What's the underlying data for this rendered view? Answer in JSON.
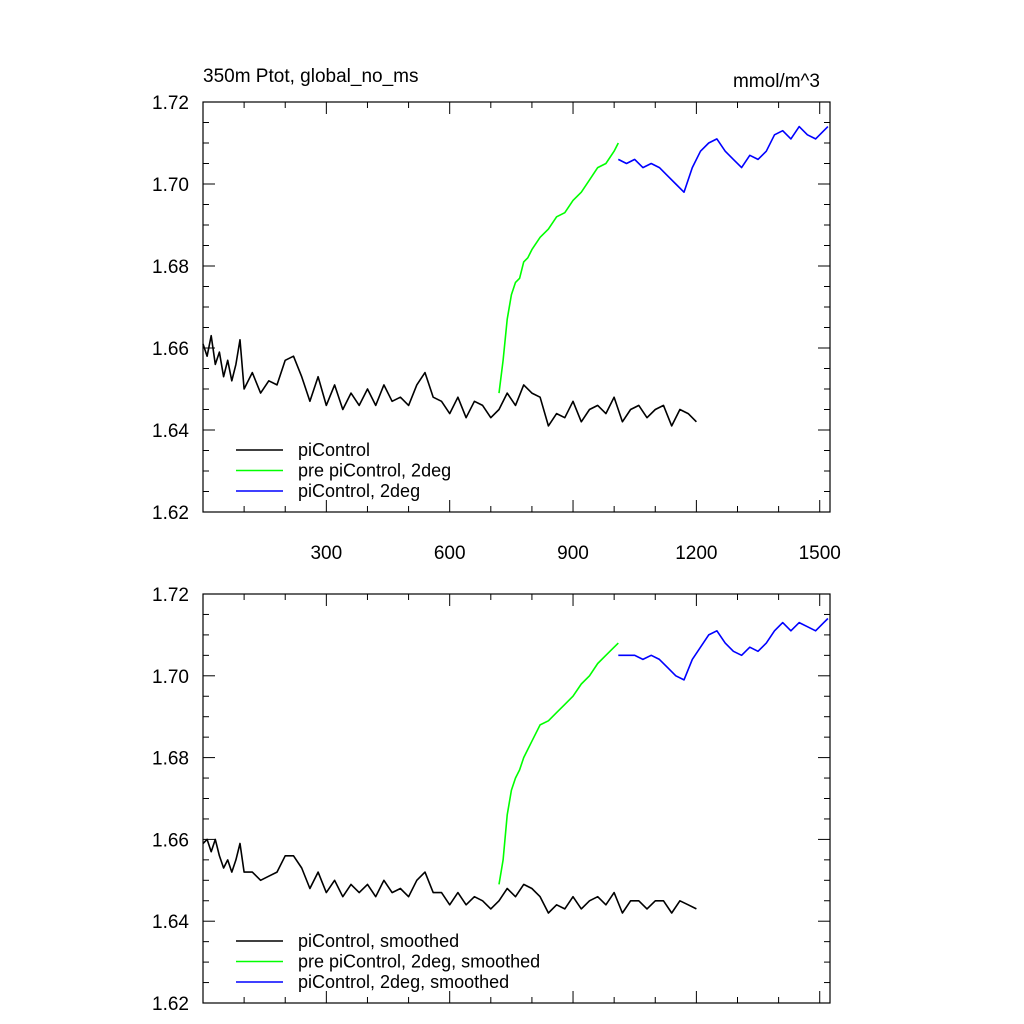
{
  "figure": {
    "title_left": "350m Ptot, global_no_ms",
    "title_right": "mmol/m^3"
  },
  "chart_data": [
    {
      "type": "line",
      "title": "350m Ptot, global_no_ms",
      "units": "mmol/m^3",
      "xlim": [
        0,
        1525
      ],
      "ylim": [
        1.62,
        1.72
      ],
      "x_ticks": [
        300,
        600,
        900,
        1200,
        1500
      ],
      "y_ticks": [
        1.62,
        1.64,
        1.66,
        1.68,
        1.7,
        1.72
      ],
      "x_tick_labels": [
        "300",
        "600",
        "900",
        "1200",
        "1500"
      ],
      "y_tick_labels": [
        "1.62",
        "1.64",
        "1.66",
        "1.68",
        "1.70",
        "1.72"
      ],
      "legend_position": "bottom-left",
      "series": [
        {
          "name": "piControl",
          "color": "#000000",
          "x": [
            0,
            10,
            20,
            30,
            40,
            50,
            60,
            70,
            80,
            90,
            100,
            120,
            140,
            160,
            180,
            200,
            220,
            240,
            260,
            280,
            300,
            320,
            340,
            360,
            380,
            400,
            420,
            440,
            460,
            480,
            500,
            520,
            540,
            560,
            580,
            600,
            620,
            640,
            660,
            680,
            700,
            720,
            740,
            760,
            780,
            800,
            820,
            840,
            860,
            880,
            900,
            920,
            940,
            960,
            980,
            1000,
            1020,
            1040,
            1060,
            1080,
            1100,
            1120,
            1140,
            1160,
            1180,
            1200
          ],
          "y": [
            1.661,
            1.658,
            1.663,
            1.656,
            1.659,
            1.653,
            1.657,
            1.652,
            1.656,
            1.662,
            1.65,
            1.654,
            1.649,
            1.652,
            1.651,
            1.657,
            1.658,
            1.653,
            1.647,
            1.653,
            1.646,
            1.651,
            1.645,
            1.649,
            1.646,
            1.65,
            1.646,
            1.651,
            1.647,
            1.648,
            1.646,
            1.651,
            1.654,
            1.648,
            1.647,
            1.644,
            1.648,
            1.643,
            1.647,
            1.646,
            1.643,
            1.645,
            1.649,
            1.646,
            1.651,
            1.649,
            1.648,
            1.641,
            1.644,
            1.643,
            1.647,
            1.642,
            1.645,
            1.646,
            1.644,
            1.648,
            1.642,
            1.645,
            1.646,
            1.643,
            1.645,
            1.646,
            1.641,
            1.645,
            1.644,
            1.642
          ]
        },
        {
          "name": "pre piControl, 2deg",
          "color": "#00ff00",
          "x": [
            720,
            730,
            740,
            750,
            760,
            770,
            780,
            790,
            800,
            820,
            840,
            860,
            880,
            900,
            920,
            940,
            960,
            980,
            1000,
            1010
          ],
          "y": [
            1.649,
            1.657,
            1.667,
            1.673,
            1.676,
            1.677,
            1.681,
            1.682,
            1.684,
            1.687,
            1.689,
            1.692,
            1.693,
            1.696,
            1.698,
            1.701,
            1.704,
            1.705,
            1.708,
            1.71
          ]
        },
        {
          "name": "piControl, 2deg",
          "color": "#0000ff",
          "x": [
            1010,
            1030,
            1050,
            1070,
            1090,
            1110,
            1130,
            1150,
            1170,
            1190,
            1210,
            1230,
            1250,
            1270,
            1290,
            1310,
            1330,
            1350,
            1370,
            1390,
            1410,
            1430,
            1450,
            1470,
            1490,
            1510,
            1520
          ],
          "y": [
            1.706,
            1.705,
            1.706,
            1.704,
            1.705,
            1.704,
            1.702,
            1.7,
            1.698,
            1.704,
            1.708,
            1.71,
            1.711,
            1.708,
            1.706,
            1.704,
            1.707,
            1.706,
            1.708,
            1.712,
            1.713,
            1.711,
            1.714,
            1.712,
            1.711,
            1.713,
            1.714
          ]
        }
      ]
    },
    {
      "type": "line",
      "xlim": [
        0,
        1525
      ],
      "ylim": [
        1.62,
        1.72
      ],
      "x_ticks": [
        300,
        600,
        900,
        1200,
        1500
      ],
      "y_ticks": [
        1.62,
        1.64,
        1.66,
        1.68,
        1.7,
        1.72
      ],
      "y_tick_labels": [
        "1.62",
        "1.64",
        "1.66",
        "1.68",
        "1.70",
        "1.72"
      ],
      "legend_position": "bottom-left",
      "series": [
        {
          "name": "piControl, smoothed",
          "color": "#000000",
          "x": [
            0,
            10,
            20,
            30,
            40,
            50,
            60,
            70,
            80,
            90,
            100,
            120,
            140,
            160,
            180,
            200,
            220,
            240,
            260,
            280,
            300,
            320,
            340,
            360,
            380,
            400,
            420,
            440,
            460,
            480,
            500,
            520,
            540,
            560,
            580,
            600,
            620,
            640,
            660,
            680,
            700,
            720,
            740,
            760,
            780,
            800,
            820,
            840,
            860,
            880,
            900,
            920,
            940,
            960,
            980,
            1000,
            1020,
            1040,
            1060,
            1080,
            1100,
            1120,
            1140,
            1160,
            1180,
            1200
          ],
          "y": [
            1.659,
            1.66,
            1.657,
            1.66,
            1.656,
            1.653,
            1.655,
            1.652,
            1.655,
            1.659,
            1.652,
            1.652,
            1.65,
            1.651,
            1.652,
            1.656,
            1.656,
            1.653,
            1.648,
            1.652,
            1.647,
            1.65,
            1.646,
            1.649,
            1.647,
            1.649,
            1.646,
            1.65,
            1.647,
            1.648,
            1.646,
            1.65,
            1.652,
            1.647,
            1.647,
            1.644,
            1.647,
            1.644,
            1.646,
            1.645,
            1.643,
            1.645,
            1.648,
            1.646,
            1.649,
            1.648,
            1.646,
            1.642,
            1.644,
            1.643,
            1.646,
            1.643,
            1.645,
            1.646,
            1.644,
            1.647,
            1.642,
            1.645,
            1.645,
            1.643,
            1.645,
            1.645,
            1.642,
            1.645,
            1.644,
            1.643
          ]
        },
        {
          "name": "pre piControl, 2deg, smoothed",
          "color": "#00ff00",
          "x": [
            720,
            730,
            740,
            750,
            760,
            770,
            780,
            790,
            800,
            820,
            840,
            860,
            880,
            900,
            920,
            940,
            960,
            980,
            1000,
            1010
          ],
          "y": [
            1.649,
            1.655,
            1.666,
            1.672,
            1.675,
            1.677,
            1.68,
            1.682,
            1.684,
            1.688,
            1.689,
            1.691,
            1.693,
            1.695,
            1.698,
            1.7,
            1.703,
            1.705,
            1.707,
            1.708
          ]
        },
        {
          "name": "piControl, 2deg, smoothed",
          "color": "#0000ff",
          "x": [
            1010,
            1030,
            1050,
            1070,
            1090,
            1110,
            1130,
            1150,
            1170,
            1190,
            1210,
            1230,
            1250,
            1270,
            1290,
            1310,
            1330,
            1350,
            1370,
            1390,
            1410,
            1430,
            1450,
            1470,
            1490,
            1510,
            1520
          ],
          "y": [
            1.705,
            1.705,
            1.705,
            1.704,
            1.705,
            1.704,
            1.702,
            1.7,
            1.699,
            1.704,
            1.707,
            1.71,
            1.711,
            1.708,
            1.706,
            1.705,
            1.707,
            1.706,
            1.708,
            1.711,
            1.713,
            1.711,
            1.713,
            1.712,
            1.711,
            1.713,
            1.714
          ]
        }
      ]
    }
  ]
}
